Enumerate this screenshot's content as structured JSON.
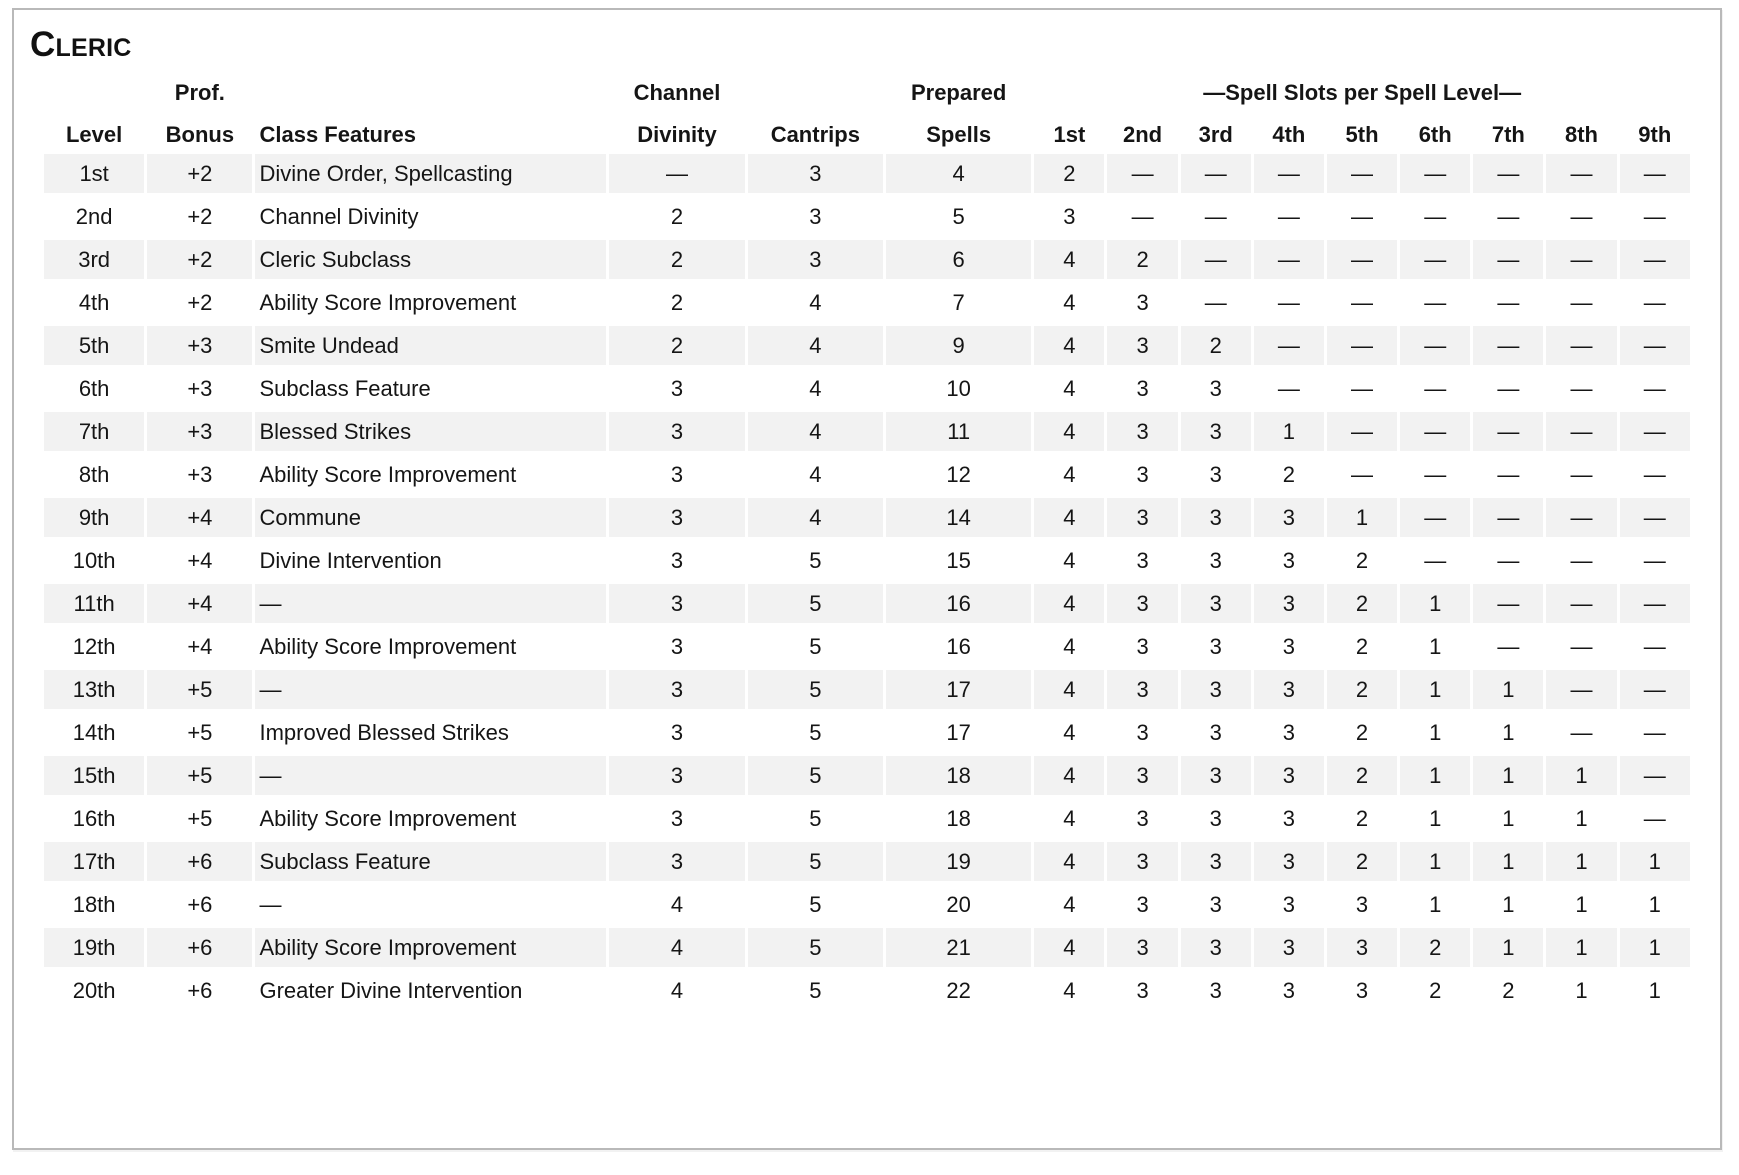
{
  "page_title": "Cleric",
  "table": {
    "group_headers": {
      "prof": "Prof.",
      "channel": "Channel",
      "prepared": "Prepared",
      "spell_slots": "—Spell Slots per Spell Level—"
    },
    "columns": [
      "Level",
      "Bonus",
      "Class Features",
      "Divinity",
      "Cantrips",
      "Spells",
      "1st",
      "2nd",
      "3rd",
      "4th",
      "5th",
      "6th",
      "7th",
      "8th",
      "9th"
    ],
    "stripe_color": "#f2f2f2",
    "border_color": "#b9b9b9",
    "rows": [
      {
        "level": "1st",
        "prof_bonus": "+2",
        "features": "Divine Order, Spellcasting",
        "channel_divinity": "—",
        "cantrips": "3",
        "prepared_spells": "4",
        "slots": [
          "2",
          "—",
          "—",
          "—",
          "—",
          "—",
          "—",
          "—",
          "—"
        ]
      },
      {
        "level": "2nd",
        "prof_bonus": "+2",
        "features": "Channel Divinity",
        "channel_divinity": "2",
        "cantrips": "3",
        "prepared_spells": "5",
        "slots": [
          "3",
          "—",
          "—",
          "—",
          "—",
          "—",
          "—",
          "—",
          "—"
        ]
      },
      {
        "level": "3rd",
        "prof_bonus": "+2",
        "features": "Cleric Subclass",
        "channel_divinity": "2",
        "cantrips": "3",
        "prepared_spells": "6",
        "slots": [
          "4",
          "2",
          "—",
          "—",
          "—",
          "—",
          "—",
          "—",
          "—"
        ]
      },
      {
        "level": "4th",
        "prof_bonus": "+2",
        "features": "Ability Score Improvement",
        "channel_divinity": "2",
        "cantrips": "4",
        "prepared_spells": "7",
        "slots": [
          "4",
          "3",
          "—",
          "—",
          "—",
          "—",
          "—",
          "—",
          "—"
        ]
      },
      {
        "level": "5th",
        "prof_bonus": "+3",
        "features": "Smite Undead",
        "channel_divinity": "2",
        "cantrips": "4",
        "prepared_spells": "9",
        "slots": [
          "4",
          "3",
          "2",
          "—",
          "—",
          "—",
          "—",
          "—",
          "—"
        ]
      },
      {
        "level": "6th",
        "prof_bonus": "+3",
        "features": "Subclass Feature",
        "channel_divinity": "3",
        "cantrips": "4",
        "prepared_spells": "10",
        "slots": [
          "4",
          "3",
          "3",
          "—",
          "—",
          "—",
          "—",
          "—",
          "—"
        ]
      },
      {
        "level": "7th",
        "prof_bonus": "+3",
        "features": "Blessed Strikes",
        "channel_divinity": "3",
        "cantrips": "4",
        "prepared_spells": "11",
        "slots": [
          "4",
          "3",
          "3",
          "1",
          "—",
          "—",
          "—",
          "—",
          "—"
        ]
      },
      {
        "level": "8th",
        "prof_bonus": "+3",
        "features": "Ability Score Improvement",
        "channel_divinity": "3",
        "cantrips": "4",
        "prepared_spells": "12",
        "slots": [
          "4",
          "3",
          "3",
          "2",
          "—",
          "—",
          "—",
          "—",
          "—"
        ]
      },
      {
        "level": "9th",
        "prof_bonus": "+4",
        "features": "Commune",
        "channel_divinity": "3",
        "cantrips": "4",
        "prepared_spells": "14",
        "slots": [
          "4",
          "3",
          "3",
          "3",
          "1",
          "—",
          "—",
          "—",
          "—"
        ]
      },
      {
        "level": "10th",
        "prof_bonus": "+4",
        "features": "Divine Intervention",
        "channel_divinity": "3",
        "cantrips": "5",
        "prepared_spells": "15",
        "slots": [
          "4",
          "3",
          "3",
          "3",
          "2",
          "—",
          "—",
          "—",
          "—"
        ]
      },
      {
        "level": "11th",
        "prof_bonus": "+4",
        "features": "—",
        "channel_divinity": "3",
        "cantrips": "5",
        "prepared_spells": "16",
        "slots": [
          "4",
          "3",
          "3",
          "3",
          "2",
          "1",
          "—",
          "—",
          "—"
        ]
      },
      {
        "level": "12th",
        "prof_bonus": "+4",
        "features": "Ability Score Improvement",
        "channel_divinity": "3",
        "cantrips": "5",
        "prepared_spells": "16",
        "slots": [
          "4",
          "3",
          "3",
          "3",
          "2",
          "1",
          "—",
          "—",
          "—"
        ]
      },
      {
        "level": "13th",
        "prof_bonus": "+5",
        "features": "—",
        "channel_divinity": "3",
        "cantrips": "5",
        "prepared_spells": "17",
        "slots": [
          "4",
          "3",
          "3",
          "3",
          "2",
          "1",
          "1",
          "—",
          "—"
        ]
      },
      {
        "level": "14th",
        "prof_bonus": "+5",
        "features": "Improved Blessed Strikes",
        "channel_divinity": "3",
        "cantrips": "5",
        "prepared_spells": "17",
        "slots": [
          "4",
          "3",
          "3",
          "3",
          "2",
          "1",
          "1",
          "—",
          "—"
        ]
      },
      {
        "level": "15th",
        "prof_bonus": "+5",
        "features": "—",
        "channel_divinity": "3",
        "cantrips": "5",
        "prepared_spells": "18",
        "slots": [
          "4",
          "3",
          "3",
          "3",
          "2",
          "1",
          "1",
          "1",
          "—"
        ]
      },
      {
        "level": "16th",
        "prof_bonus": "+5",
        "features": "Ability Score Improvement",
        "channel_divinity": "3",
        "cantrips": "5",
        "prepared_spells": "18",
        "slots": [
          "4",
          "3",
          "3",
          "3",
          "2",
          "1",
          "1",
          "1",
          "—"
        ]
      },
      {
        "level": "17th",
        "prof_bonus": "+6",
        "features": "Subclass Feature",
        "channel_divinity": "3",
        "cantrips": "5",
        "prepared_spells": "19",
        "slots": [
          "4",
          "3",
          "3",
          "3",
          "2",
          "1",
          "1",
          "1",
          "1"
        ]
      },
      {
        "level": "18th",
        "prof_bonus": "+6",
        "features": "—",
        "channel_divinity": "4",
        "cantrips": "5",
        "prepared_spells": "20",
        "slots": [
          "4",
          "3",
          "3",
          "3",
          "3",
          "1",
          "1",
          "1",
          "1"
        ]
      },
      {
        "level": "19th",
        "prof_bonus": "+6",
        "features": "Ability Score Improvement",
        "channel_divinity": "4",
        "cantrips": "5",
        "prepared_spells": "21",
        "slots": [
          "4",
          "3",
          "3",
          "3",
          "3",
          "2",
          "1",
          "1",
          "1"
        ]
      },
      {
        "level": "20th",
        "prof_bonus": "+6",
        "features": "Greater Divine Intervention",
        "channel_divinity": "4",
        "cantrips": "5",
        "prepared_spells": "22",
        "slots": [
          "4",
          "3",
          "3",
          "3",
          "3",
          "2",
          "2",
          "1",
          "1"
        ]
      }
    ]
  }
}
